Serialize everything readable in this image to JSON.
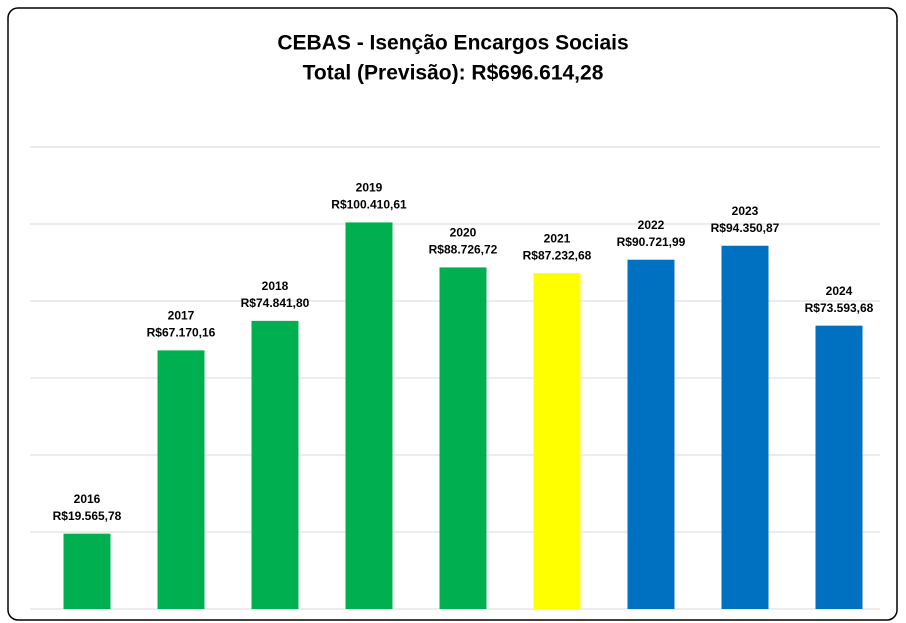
{
  "chart_data": {
    "type": "bar",
    "title": "CEBAS - Isenção Encargos Sociais",
    "subtitle": "Total (Previsão): R$696.614,28",
    "categories": [
      "2016",
      "2017",
      "2018",
      "2019",
      "2020",
      "2021",
      "2022",
      "2023",
      "2024"
    ],
    "values": [
      19565.78,
      67170.16,
      74841.8,
      100410.61,
      88726.72,
      87232.68,
      90721.99,
      94350.87,
      73593.68
    ],
    "value_labels": [
      "R$19.565,78",
      "R$67.170,16",
      "R$74.841,80",
      "R$100.410,61",
      "R$88.726,72",
      "R$87.232,68",
      "R$90.721,99",
      "R$94.350,87",
      "R$73.593,68"
    ],
    "colors": [
      "#00b050",
      "#00b050",
      "#00b050",
      "#00b050",
      "#00b050",
      "#ffff00",
      "#0070c0",
      "#0070c0",
      "#0070c0"
    ],
    "ylim": [
      0,
      120000
    ],
    "yticks": [
      0,
      20000,
      40000,
      60000,
      80000,
      100000,
      120000
    ],
    "grid": true
  }
}
